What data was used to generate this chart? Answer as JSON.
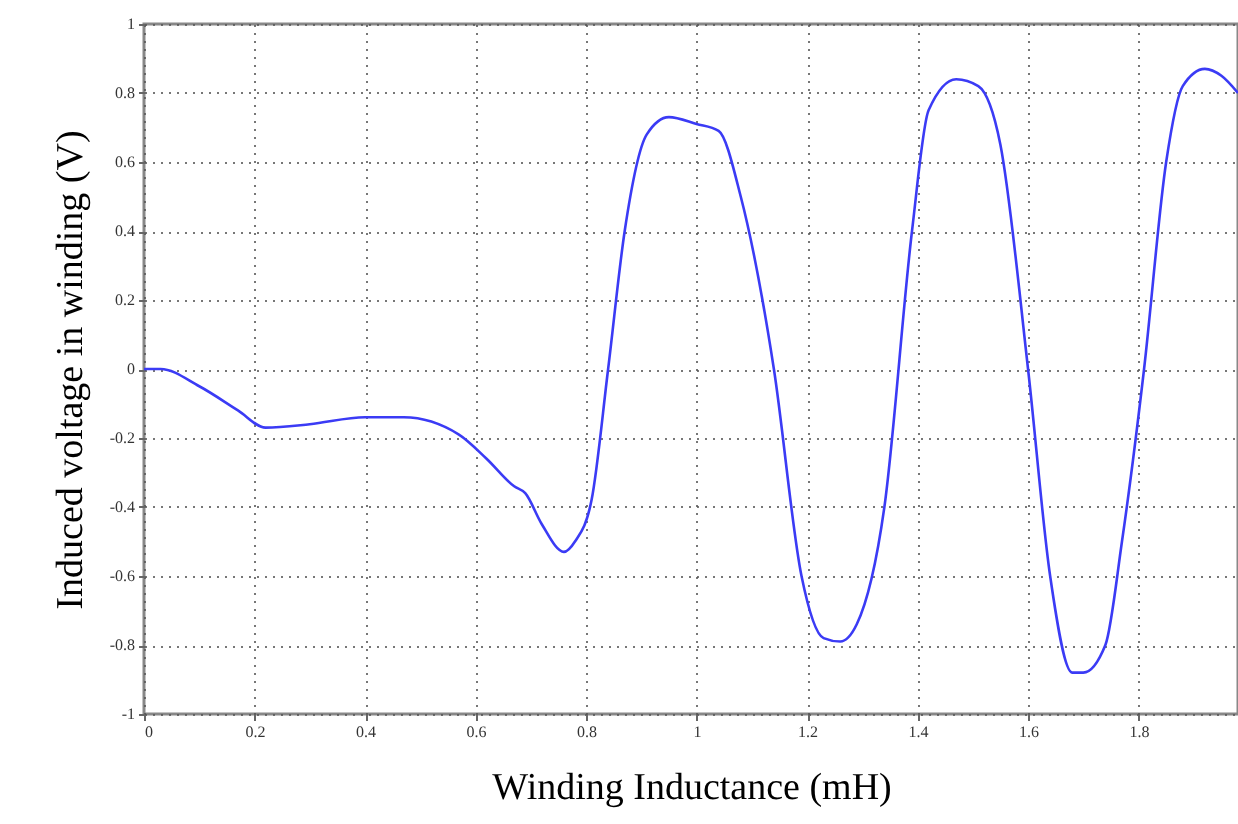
{
  "chart_data": {
    "type": "line",
    "xlabel": "Winding Inductance (mH)",
    "ylabel": "Induced voltage in winding (V)",
    "x": [
      0,
      0.03,
      0.1,
      0.17,
      0.22,
      0.3,
      0.4,
      0.47,
      0.57,
      0.62,
      0.67,
      0.69,
      0.72,
      0.76,
      0.78,
      0.81,
      0.84,
      0.87,
      0.91,
      0.95,
      1.0,
      1.04,
      1.08,
      1.14,
      1.19,
      1.23,
      1.26,
      1.29,
      1.34,
      1.39,
      1.42,
      1.47,
      1.51,
      1.55,
      1.6,
      1.64,
      1.68,
      1.7,
      1.74,
      1.77,
      1.81,
      1.85,
      1.88,
      1.92,
      1.95,
      1.98
    ],
    "series": [
      {
        "color": "#3b3bf5",
        "values": [
          0,
          0,
          -0.05,
          -0.12,
          -0.17,
          -0.16,
          -0.14,
          -0.14,
          -0.19,
          -0.26,
          -0.34,
          -0.36,
          -0.45,
          -0.53,
          -0.5,
          -0.38,
          0,
          0.4,
          0.68,
          0.73,
          0.71,
          0.69,
          0.5,
          0,
          -0.6,
          -0.78,
          -0.79,
          -0.74,
          -0.4,
          0.4,
          0.75,
          0.84,
          0.82,
          0.65,
          0,
          -0.6,
          -0.88,
          -0.88,
          -0.8,
          -0.5,
          0,
          0.6,
          0.82,
          0.87,
          0.85,
          0.8
        ]
      }
    ],
    "xlim": [
      0,
      1.98
    ],
    "xticks": [
      0,
      0.2,
      0.4,
      0.6,
      0.8,
      1,
      1.2,
      1.4,
      1.6,
      1.8
    ],
    "ylim": [
      -1,
      1
    ],
    "yticks": [
      -1,
      -0.8,
      -0.6,
      -0.4,
      -0.2,
      0,
      0.2,
      0.4,
      0.6,
      0.8,
      1
    ],
    "grid": true,
    "marker": "none",
    "line_style": "solid"
  }
}
